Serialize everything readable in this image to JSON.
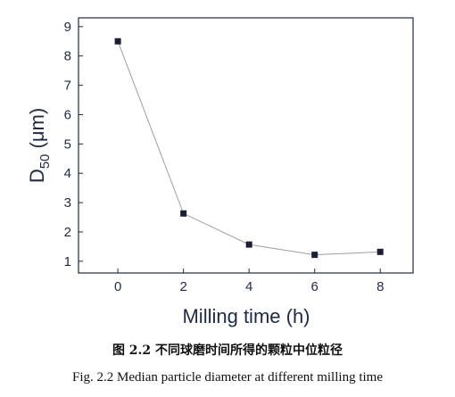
{
  "caption": {
    "cn": "图 2.2   不同球磨时间所得的颗粒中位粒径",
    "en": "Fig. 2.2    Median particle diameter at different milling time"
  },
  "chart_data": {
    "type": "line",
    "xlabel": "Milling time (h)",
    "ylabel": "D50 (μm)",
    "xlim": [
      -1.2,
      9
    ],
    "ylim": [
      0.6,
      9.3
    ],
    "xticks": [
      0,
      2,
      4,
      6,
      8
    ],
    "yticks": [
      1,
      2,
      3,
      4,
      5,
      6,
      7,
      8,
      9
    ],
    "grid": false,
    "series": [
      {
        "x": [
          0,
          2,
          4,
          6,
          8
        ],
        "y": [
          8.5,
          2.63,
          1.57,
          1.22,
          1.32
        ],
        "marker": "square",
        "color": "#1a1f33",
        "line_color": "#9aa0a8"
      }
    ]
  }
}
